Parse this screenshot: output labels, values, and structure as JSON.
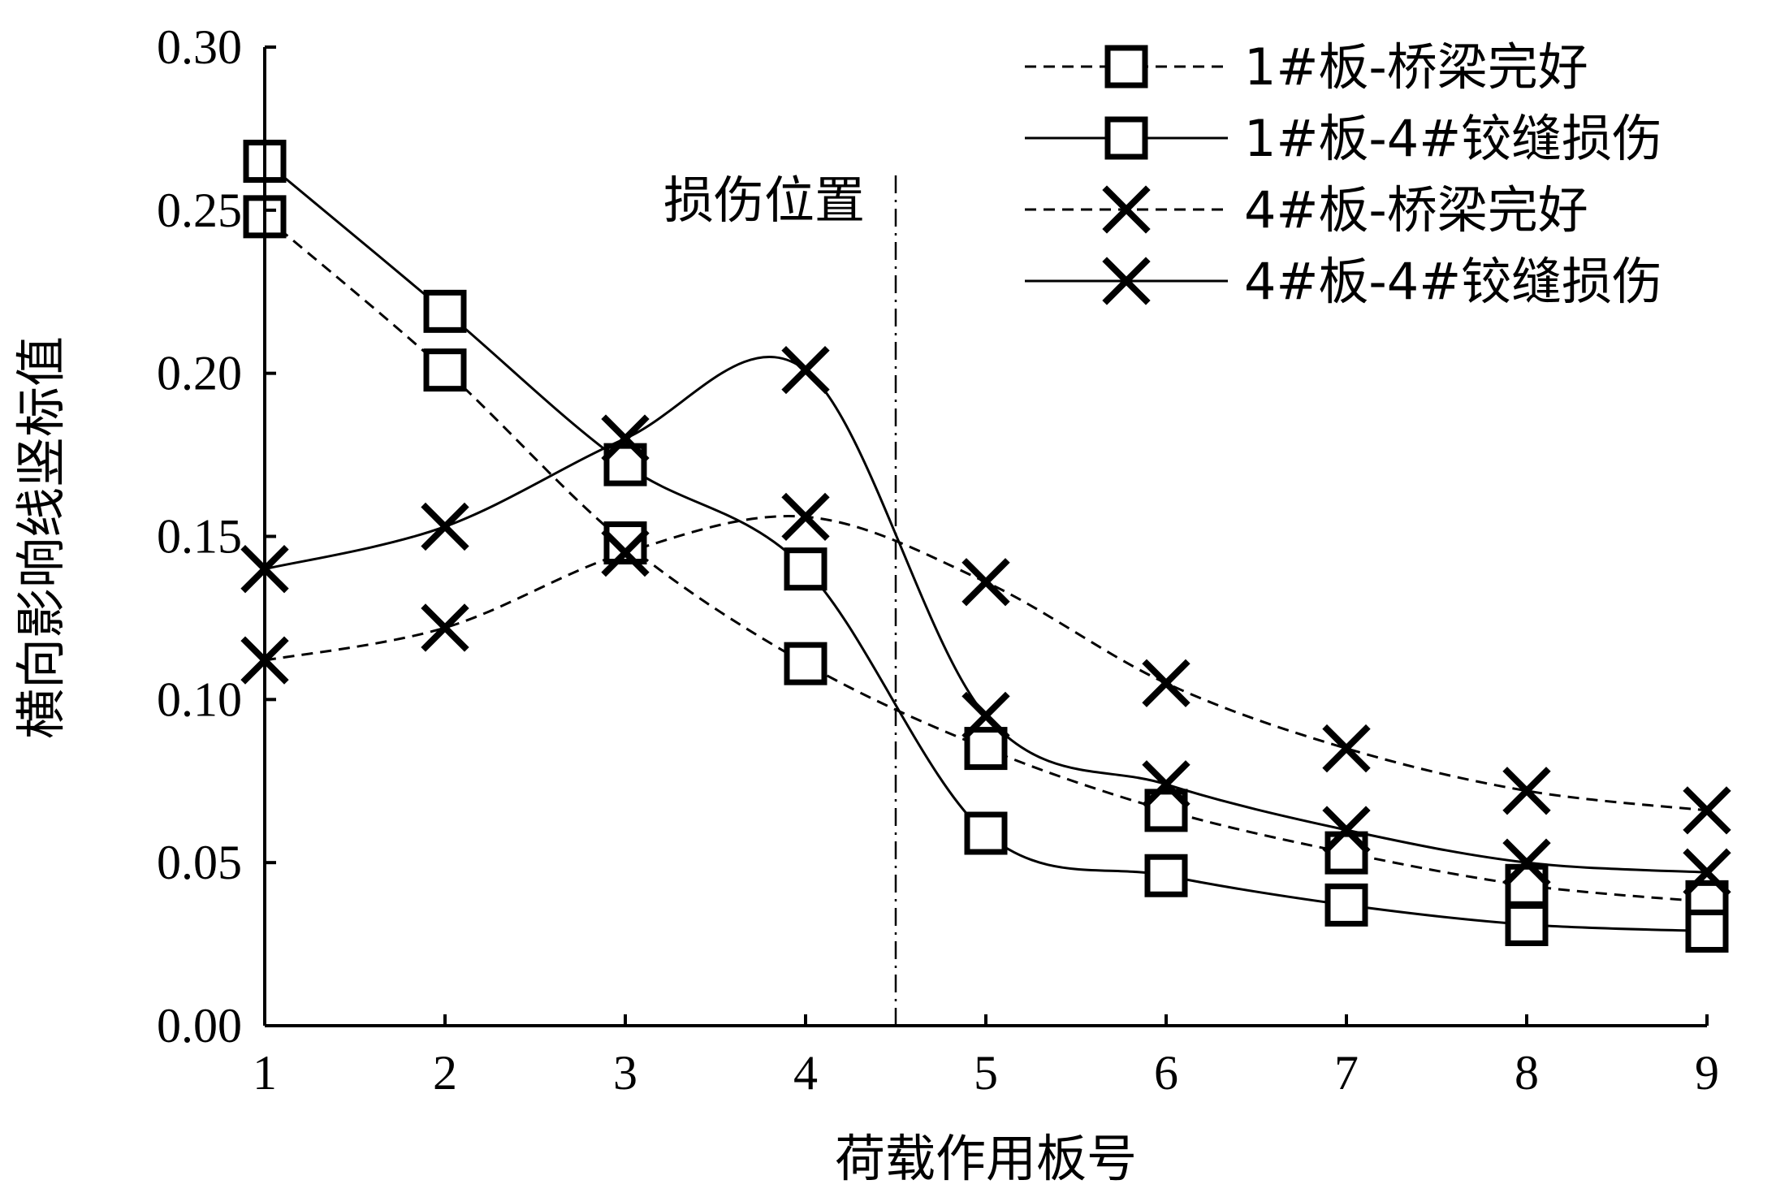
{
  "chart_data": {
    "type": "line",
    "title": "",
    "xlabel": "荷载作用板号",
    "ylabel": "横向影响线竖标值",
    "x": [
      1,
      2,
      3,
      4,
      5,
      6,
      7,
      8,
      9
    ],
    "xlim": [
      1,
      9
    ],
    "ylim": [
      0,
      0.3
    ],
    "x_ticks": [
      "1",
      "2",
      "3",
      "4",
      "5",
      "6",
      "7",
      "8",
      "9"
    ],
    "y_ticks": [
      "0.00",
      "0.05",
      "0.10",
      "0.15",
      "0.20",
      "0.25",
      "0.30"
    ],
    "grid": false,
    "legend_position": "top-right",
    "annotation": {
      "label": "损伤位置",
      "x": 4.5,
      "style": "dash-dot vertical line"
    },
    "series": [
      {
        "name": "1#板-桥梁完好",
        "marker": "square",
        "line_style": "dashed",
        "values": [
          0.248,
          0.201,
          0.148,
          0.111,
          0.085,
          0.066,
          0.053,
          0.043,
          0.038
        ]
      },
      {
        "name": "1#板-4#铰缝损伤",
        "marker": "square",
        "line_style": "solid",
        "values": [
          0.265,
          0.219,
          0.172,
          0.14,
          0.059,
          0.046,
          0.037,
          0.031,
          0.029
        ]
      },
      {
        "name": "4#板-桥梁完好",
        "marker": "x",
        "line_style": "dashed",
        "values": [
          0.112,
          0.122,
          0.145,
          0.156,
          0.136,
          0.105,
          0.085,
          0.072,
          0.066
        ]
      },
      {
        "name": "4#板-4#铰缝损伤",
        "marker": "x",
        "line_style": "solid",
        "values": [
          0.14,
          0.153,
          0.18,
          0.201,
          0.095,
          0.074,
          0.06,
          0.05,
          0.047
        ]
      }
    ]
  }
}
